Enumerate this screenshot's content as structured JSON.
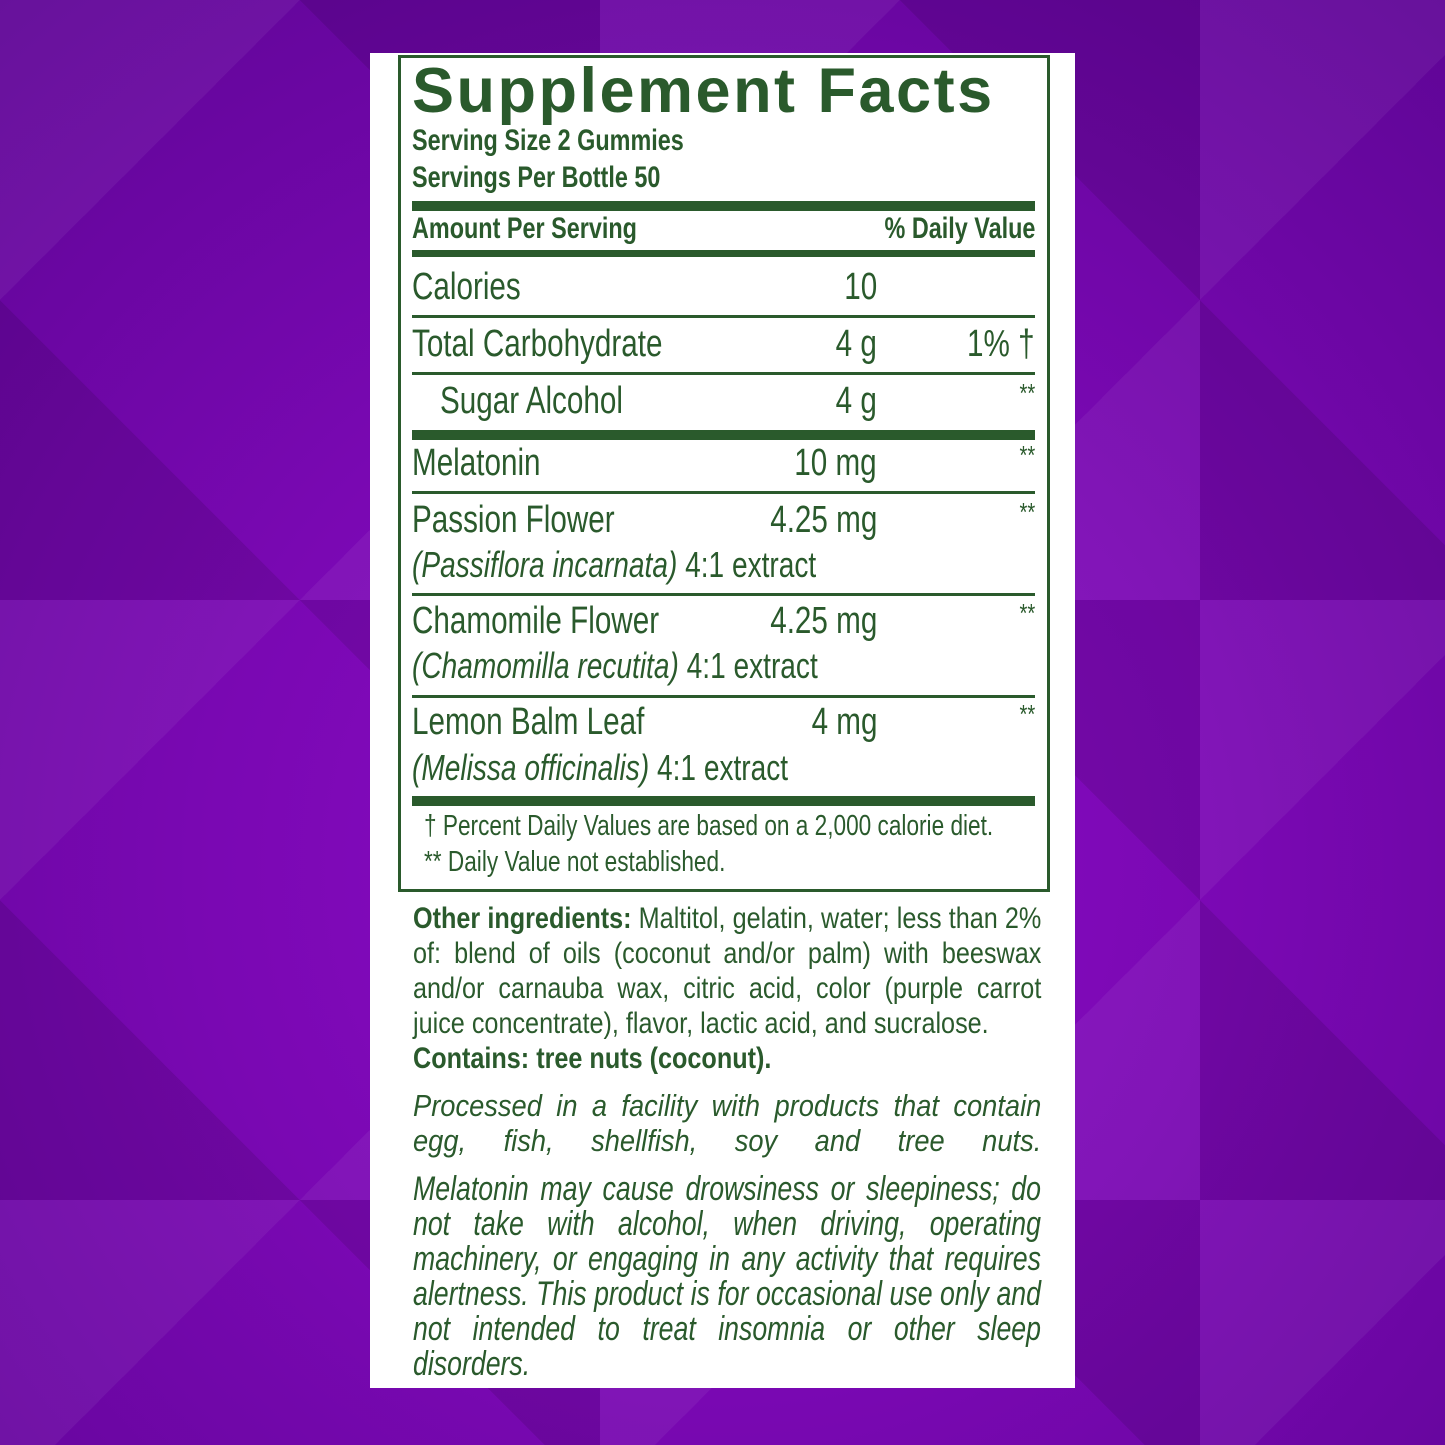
{
  "colors": {
    "label_green": "#2a5a2c",
    "background": "#7a08b3",
    "panel": "#ffffff"
  },
  "title": "Supplement Facts",
  "serving_size": "Serving Size 2 Gummies",
  "servings_per": "Servings Per Bottle 50",
  "amount_header": "Amount Per Serving",
  "dv_header": "% Daily Value",
  "rows": [
    {
      "name": "Calories",
      "amount": "10",
      "dv": ""
    },
    {
      "name": "Total Carbohydrate",
      "amount": "4 g",
      "dv": "1% †"
    },
    {
      "name": "Sugar Alcohol",
      "amount": "4 g",
      "dv": "**"
    },
    {
      "name": "Melatonin",
      "amount": "10 mg",
      "dv": "**"
    },
    {
      "name": "Passion Flower",
      "latin": "(Passiflora incarnata)",
      "extract": "4:1 extract",
      "amount": "4.25 mg",
      "dv": "**"
    },
    {
      "name": "Chamomile Flower",
      "latin": "(Chamomilla recutita)",
      "extract": "4:1 extract",
      "amount": "4.25 mg",
      "dv": "**"
    },
    {
      "name": "Lemon Balm Leaf",
      "latin": "(Melissa officinalis)",
      "extract": "4:1 extract",
      "amount": "4 mg",
      "dv": "**"
    }
  ],
  "footnote1": "† Percent Daily Values are based on a 2,000 calorie diet.",
  "footnote2": "** Daily Value not established.",
  "other_label": "Other ingredients:",
  "other_text": " Maltitol, gelatin, water; less than 2% of:  blend of oils (coconut and/or palm) with beeswax and/or carnauba wax, citric acid, color (purple carrot juice concentrate), flavor, lactic acid, and sucralose.",
  "contains": "Contains: tree nuts (coconut).",
  "processed": "Processed in a facility with products that contain egg, fish, shellfish, soy and tree nuts.",
  "warning": "Melatonin may cause drowsiness or sleepiness; do not take with alcohol, when driving, operating machinery, or engaging in any activity that requires alertness. This product is for occasional use only and not intended to treat insomnia or other sleep disorders."
}
